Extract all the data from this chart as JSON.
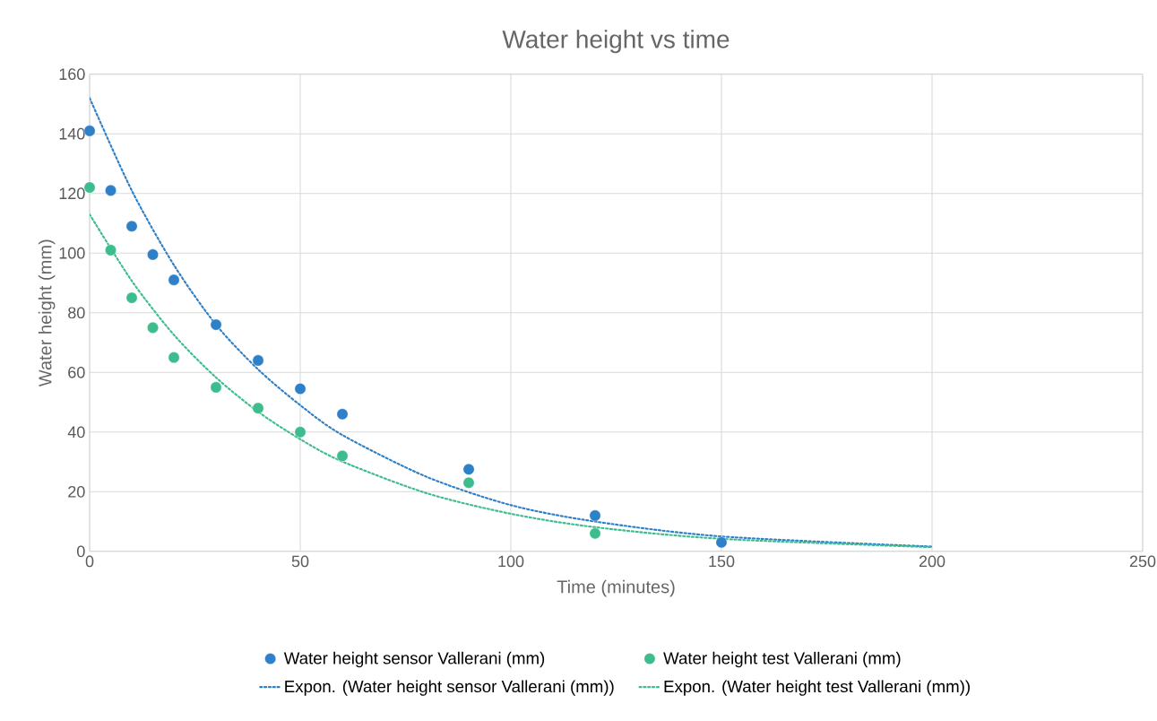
{
  "chart_data": {
    "type": "scatter",
    "title": "Water height vs time",
    "xlabel": "Time (minutes)",
    "ylabel": "Water height (mm)",
    "xlim": [
      0,
      250
    ],
    "xticks": [
      0,
      50,
      100,
      150,
      200,
      250
    ],
    "ylim": [
      0,
      160
    ],
    "yticks": [
      0,
      20,
      40,
      60,
      80,
      100,
      120,
      140,
      160
    ],
    "grid": true,
    "legend": "bottom",
    "series": [
      {
        "name": "Water height sensor Vallerani (mm)",
        "marker": "circle",
        "color": "#2e80c8",
        "x": [
          0,
          5,
          10,
          15,
          20,
          30,
          40,
          50,
          60,
          90,
          120,
          150
        ],
        "values": [
          141,
          121,
          109,
          99.5,
          91,
          76,
          64,
          54.5,
          46,
          27.5,
          12,
          3
        ]
      },
      {
        "name": "Water height test Vallerani (mm)",
        "marker": "circle",
        "color": "#3dbd8e",
        "x": [
          0,
          5,
          10,
          15,
          20,
          30,
          40,
          50,
          60,
          90,
          120
        ],
        "values": [
          122,
          101,
          85,
          75,
          65,
          55,
          48,
          40,
          32,
          23,
          6
        ]
      },
      {
        "name": "Expon. (Water height sensor Vallerani (mm))",
        "type": "line",
        "line_style": "dotted",
        "color": "#2e80c8",
        "x": [
          0,
          10,
          20,
          30,
          40,
          50,
          60,
          80,
          100,
          120,
          150,
          200
        ],
        "values": [
          152,
          121,
          96,
          76,
          61,
          49,
          39,
          25,
          15.5,
          10,
          5,
          1.6
        ]
      },
      {
        "name": "Expon. (Water height test Vallerani (mm))",
        "type": "line",
        "line_style": "dotted",
        "color": "#3dbd8e",
        "x": [
          0,
          10,
          20,
          30,
          40,
          50,
          60,
          80,
          100,
          120,
          150,
          200
        ],
        "values": [
          113,
          90.7,
          72.6,
          58.3,
          46.8,
          37.6,
          30.1,
          19.5,
          12.6,
          8.1,
          4.2,
          1.4
        ]
      }
    ]
  }
}
